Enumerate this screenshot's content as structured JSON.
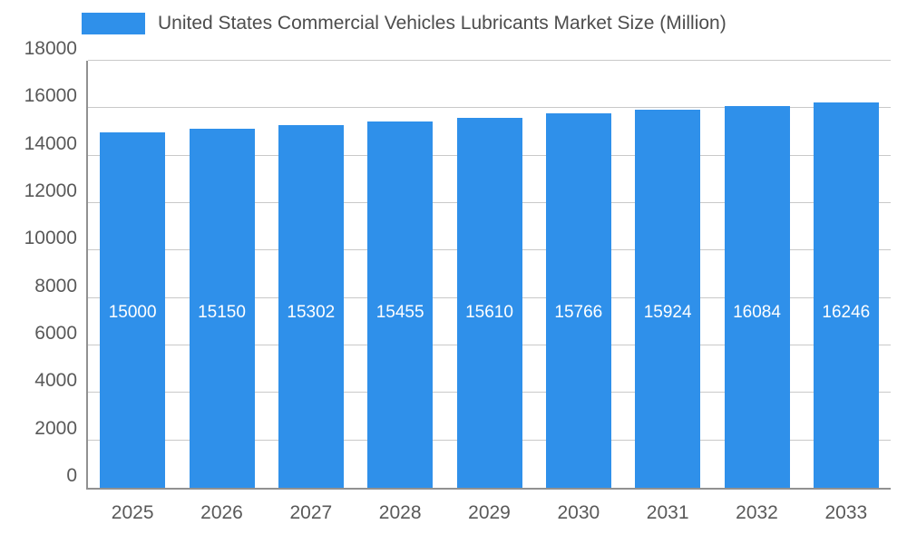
{
  "legend": {
    "swatch_color": "#2f90ea"
  },
  "chart_data": {
    "type": "bar",
    "title": "United States Commercial Vehicles Lubricants Market Size (Million)",
    "categories": [
      "2025",
      "2026",
      "2027",
      "2028",
      "2029",
      "2030",
      "2031",
      "2032",
      "2033"
    ],
    "values": [
      15000,
      15150,
      15302,
      15455,
      15610,
      15766,
      15924,
      16084,
      16246
    ],
    "xlabel": "",
    "ylabel": "",
    "ylim": [
      0,
      18000
    ],
    "ytick_step": 2000,
    "ytick_labels": [
      "0",
      "2000",
      "4000",
      "6000",
      "8000",
      "10000",
      "12000",
      "14000",
      "16000",
      "18000"
    ],
    "bar_color": "#2f90ea",
    "value_label_color": "#ffffff",
    "grid": true,
    "legend_position": "top"
  }
}
